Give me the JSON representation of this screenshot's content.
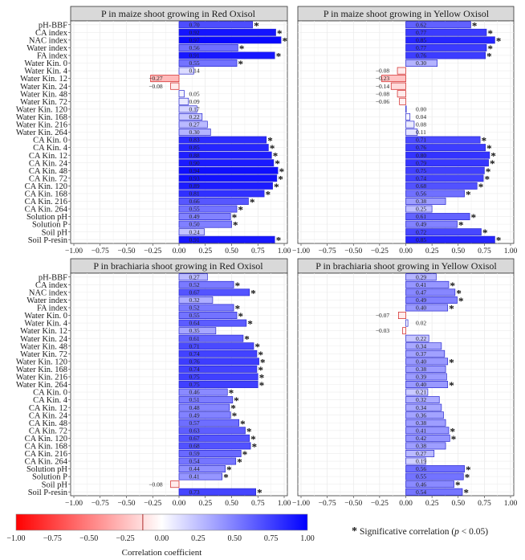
{
  "chart_data": [
    {
      "type": "bar",
      "orientation": "horizontal",
      "title": "P in maize shoot growing in Red Oxisol",
      "categories": [
        "pH-BBF",
        "CA index",
        "NAC index",
        "Water index",
        "FA index",
        "Water Kin. 0",
        "Water Kin. 4",
        "Water Kin. 12",
        "Water Kin. 24",
        "Water Kin. 48",
        "Water Kin. 72",
        "Water Kin. 120",
        "Water Kin. 168",
        "Water Kin. 216",
        "Water Kin. 264",
        "CA Kin. 0",
        "CA Kin. 4",
        "CA Kin. 12",
        "CA Kin. 24",
        "CA Kin. 48",
        "CA Kin. 72",
        "CA Kin. 120",
        "CA Kin. 168",
        "CA Kin. 216",
        "CA Kin. 264",
        "Solution pH",
        "Solution P",
        "Soil pH",
        "Soil P-resin"
      ],
      "values": [
        0.7,
        0.92,
        0.97,
        0.56,
        0.91,
        0.55,
        0.14,
        -0.27,
        -0.08,
        0.05,
        0.09,
        0.17,
        0.22,
        0.27,
        0.3,
        0.83,
        0.85,
        0.88,
        0.9,
        0.94,
        0.93,
        0.89,
        0.81,
        0.66,
        0.55,
        0.49,
        0.5,
        0.24,
        0.91
      ],
      "value_labels": [
        "0.70",
        "0.92",
        "0.97",
        "0.56",
        "0.91",
        "0.55",
        "0.14",
        "−0.27",
        "−0.08",
        "0.05",
        "0.09",
        "0.17",
        "0.22",
        "0.27",
        "0.30",
        "0.83",
        "0.85",
        "0.88",
        "0.90",
        "0.94",
        "0.93",
        "0.89",
        "0.81",
        "0.66",
        "0.55",
        "0.49",
        "0.50",
        "0.24",
        "0.91"
      ],
      "significant": [
        true,
        true,
        true,
        true,
        true,
        true,
        false,
        false,
        false,
        false,
        false,
        false,
        false,
        false,
        false,
        true,
        true,
        true,
        true,
        true,
        true,
        true,
        true,
        true,
        true,
        true,
        true,
        false,
        true
      ],
      "xlim": [
        -1.0,
        1.0
      ]
    },
    {
      "type": "bar",
      "orientation": "horizontal",
      "title": "P in maize shoot growing in Yellow Oxisol",
      "categories": [
        "pH-BBF",
        "CA index",
        "NAC index",
        "Water index",
        "FA index",
        "Water Kin. 0",
        "Water Kin. 4",
        "Water Kin. 12",
        "Water Kin. 24",
        "Water Kin. 48",
        "Water Kin. 72",
        "Water Kin. 120",
        "Water Kin. 168",
        "Water Kin. 216",
        "Water Kin. 264",
        "CA Kin. 0",
        "CA Kin. 4",
        "CA Kin. 12",
        "CA Kin. 24",
        "CA Kin. 48",
        "CA Kin. 72",
        "CA Kin. 120",
        "CA Kin. 168",
        "CA Kin. 216",
        "CA Kin. 264",
        "Solution pH",
        "Solution P",
        "Soil pH",
        "Soil P-resin"
      ],
      "values": [
        0.62,
        0.77,
        0.85,
        0.77,
        0.76,
        0.3,
        -0.08,
        -0.23,
        -0.14,
        -0.08,
        -0.06,
        0.0,
        0.04,
        0.08,
        0.11,
        0.71,
        0.76,
        0.8,
        0.79,
        0.75,
        0.74,
        0.68,
        0.56,
        0.38,
        0.25,
        0.61,
        0.49,
        0.72,
        0.85
      ],
      "value_labels": [
        "0.62",
        "0.77",
        "0.85",
        "0.77",
        "0.76",
        "0.30",
        "−0.08",
        "−0.23",
        "−0.14",
        "−0.08",
        "−0.06",
        "0.00",
        "0.04",
        "0.08",
        "0.11",
        "0.71",
        "0.76",
        "0.80",
        "0.79",
        "0.75",
        "0.74",
        "0.68",
        "0.56",
        "0.38",
        "0.25",
        "0.61",
        "0.49",
        "0.72",
        "0.85"
      ],
      "significant": [
        true,
        true,
        true,
        true,
        true,
        false,
        false,
        false,
        false,
        false,
        false,
        false,
        false,
        false,
        false,
        true,
        true,
        true,
        true,
        true,
        true,
        true,
        true,
        false,
        false,
        true,
        true,
        true,
        true
      ],
      "xlim": [
        -1.0,
        1.0
      ]
    },
    {
      "type": "bar",
      "orientation": "horizontal",
      "title": "P in brachiaria shoot growing in Red Oxisol",
      "categories": [
        "pH-BBF",
        "CA index",
        "NAC index",
        "Water index",
        "FA index",
        "Water Kin. 0",
        "Water Kin. 4",
        "Water Kin. 12",
        "Water Kin. 24",
        "Water Kin. 48",
        "Water Kin. 72",
        "Water Kin. 120",
        "Water Kin. 168",
        "Water Kin. 216",
        "Water Kin. 264",
        "CA Kin. 0",
        "CA Kin. 4",
        "CA Kin. 12",
        "CA Kin. 24",
        "CA Kin. 48",
        "CA Kin. 72",
        "CA Kin. 120",
        "CA Kin. 168",
        "CA Kin. 216",
        "CA Kin. 264",
        "Solution pH",
        "Solution P",
        "Soil pH",
        "Soil P-resin"
      ],
      "values": [
        0.27,
        0.52,
        0.67,
        0.32,
        0.52,
        0.55,
        0.64,
        0.35,
        0.61,
        0.71,
        0.74,
        0.76,
        0.74,
        0.75,
        0.75,
        0.46,
        0.51,
        0.48,
        0.49,
        0.57,
        0.63,
        0.67,
        0.68,
        0.59,
        0.54,
        0.44,
        0.41,
        -0.08,
        0.73
      ],
      "value_labels": [
        "0.27",
        "0.52",
        "0.67",
        "0.32",
        "0.52",
        "0.55",
        "0.64",
        "0.35",
        "0.61",
        "0.71",
        "0.74",
        "0.76",
        "0.74",
        "0.75",
        "0.75",
        "0.46",
        "0.51",
        "0.48",
        "0.49",
        "0.57",
        "0.63",
        "0.67",
        "0.68",
        "0.59",
        "0.54",
        "0.44",
        "0.41",
        "−0.08",
        "0.73"
      ],
      "significant": [
        false,
        true,
        true,
        false,
        true,
        true,
        true,
        false,
        true,
        true,
        true,
        true,
        true,
        true,
        true,
        true,
        true,
        true,
        true,
        true,
        true,
        true,
        true,
        true,
        true,
        true,
        true,
        false,
        true
      ],
      "xlim": [
        -1.0,
        1.0
      ]
    },
    {
      "type": "bar",
      "orientation": "horizontal",
      "title": "P in brachiaria shoot growing in Yellow Oxisol",
      "categories": [
        "pH-BBF",
        "CA index",
        "NAC index",
        "Water index",
        "FA index",
        "Water Kin. 0",
        "Water Kin. 4",
        "Water Kin. 12",
        "Water Kin. 24",
        "Water Kin. 48",
        "Water Kin. 72",
        "Water Kin. 120",
        "Water Kin. 168",
        "Water Kin. 216",
        "Water Kin. 264",
        "CA Kin. 0",
        "CA Kin. 4",
        "CA Kin. 12",
        "CA Kin. 24",
        "CA Kin. 48",
        "CA Kin. 72",
        "CA Kin. 120",
        "CA Kin. 168",
        "CA Kin. 216",
        "CA Kin. 264",
        "Solution pH",
        "Solution P",
        "Soil pH",
        "Soil P-resin"
      ],
      "values": [
        0.29,
        0.41,
        0.47,
        0.49,
        0.4,
        -0.07,
        0.02,
        -0.03,
        0.22,
        0.34,
        0.37,
        0.4,
        0.38,
        0.39,
        0.4,
        0.21,
        0.32,
        0.34,
        0.36,
        0.38,
        0.41,
        0.42,
        0.38,
        0.27,
        0.19,
        0.56,
        0.55,
        0.46,
        0.54
      ],
      "value_labels": [
        "0.29",
        "0.41",
        "0.47",
        "0.49",
        "0.40",
        "−0.07",
        "0.02",
        "−0.03",
        "0.22",
        "0.34",
        "0.37",
        "0.40",
        "0.38",
        "0.39",
        "0.40",
        "0.21",
        "0.32",
        "0.34",
        "0.36",
        "0.38",
        "0.41",
        "0.42",
        "0.38",
        "0.27",
        "0.19",
        "0.56",
        "0.55",
        "0.46",
        "0.54"
      ],
      "significant": [
        false,
        true,
        true,
        true,
        true,
        false,
        false,
        false,
        false,
        false,
        false,
        true,
        false,
        false,
        true,
        false,
        false,
        false,
        false,
        false,
        true,
        true,
        false,
        false,
        false,
        true,
        true,
        true,
        true
      ],
      "xlim": [
        -1.0,
        1.0
      ]
    }
  ],
  "x_ticks": [
    "−1.00",
    "−0.75",
    "−0.50",
    "−0.25",
    "0.00",
    "0.25",
    "0.50",
    "0.75",
    "1.00"
  ],
  "significance_marker": "*",
  "colorbar": {
    "ticks": [
      "−1.00",
      "−0.75",
      "−0.50",
      "−0.25",
      "0.00",
      "0.25",
      "0.50",
      "0.75",
      "1.00"
    ],
    "low_color": "#ff0000",
    "mid_color": "#ffffff",
    "high_color": "#0000ff",
    "label": "Correlation  coefficient"
  },
  "legend": {
    "marker": "*",
    "prefix": "Significative correlation (",
    "italic": "p",
    "suffix": " < 0.05)"
  }
}
